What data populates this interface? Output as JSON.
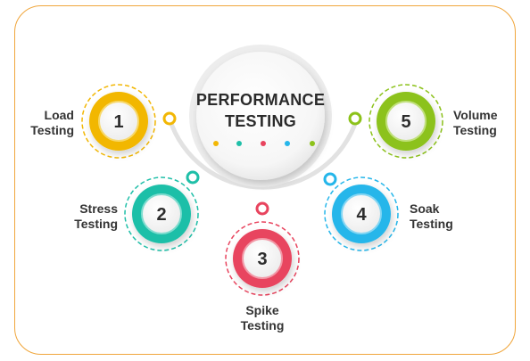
{
  "title": {
    "line1": "PERFORMANCE",
    "line2": "TESTING"
  },
  "colors": {
    "frame": "#f0a63c",
    "load": "#f2b705",
    "stress": "#1fbfa8",
    "spike": "#e8445e",
    "soak": "#25b6ea",
    "volume": "#8cc21a",
    "arc": "#e2e2e2"
  },
  "items": [
    {
      "number": "1",
      "line1": "Load",
      "line2": "Testing",
      "color": "#f2b705"
    },
    {
      "number": "2",
      "line1": "Stress",
      "line2": "Testing",
      "color": "#1fbfa8"
    },
    {
      "number": "3",
      "line1": "Spike",
      "line2": "Testing",
      "color": "#e8445e"
    },
    {
      "number": "4",
      "line1": "Soak",
      "line2": "Testing",
      "color": "#25b6ea"
    },
    {
      "number": "5",
      "line1": "Volume",
      "line2": "Testing",
      "color": "#8cc21a"
    }
  ]
}
